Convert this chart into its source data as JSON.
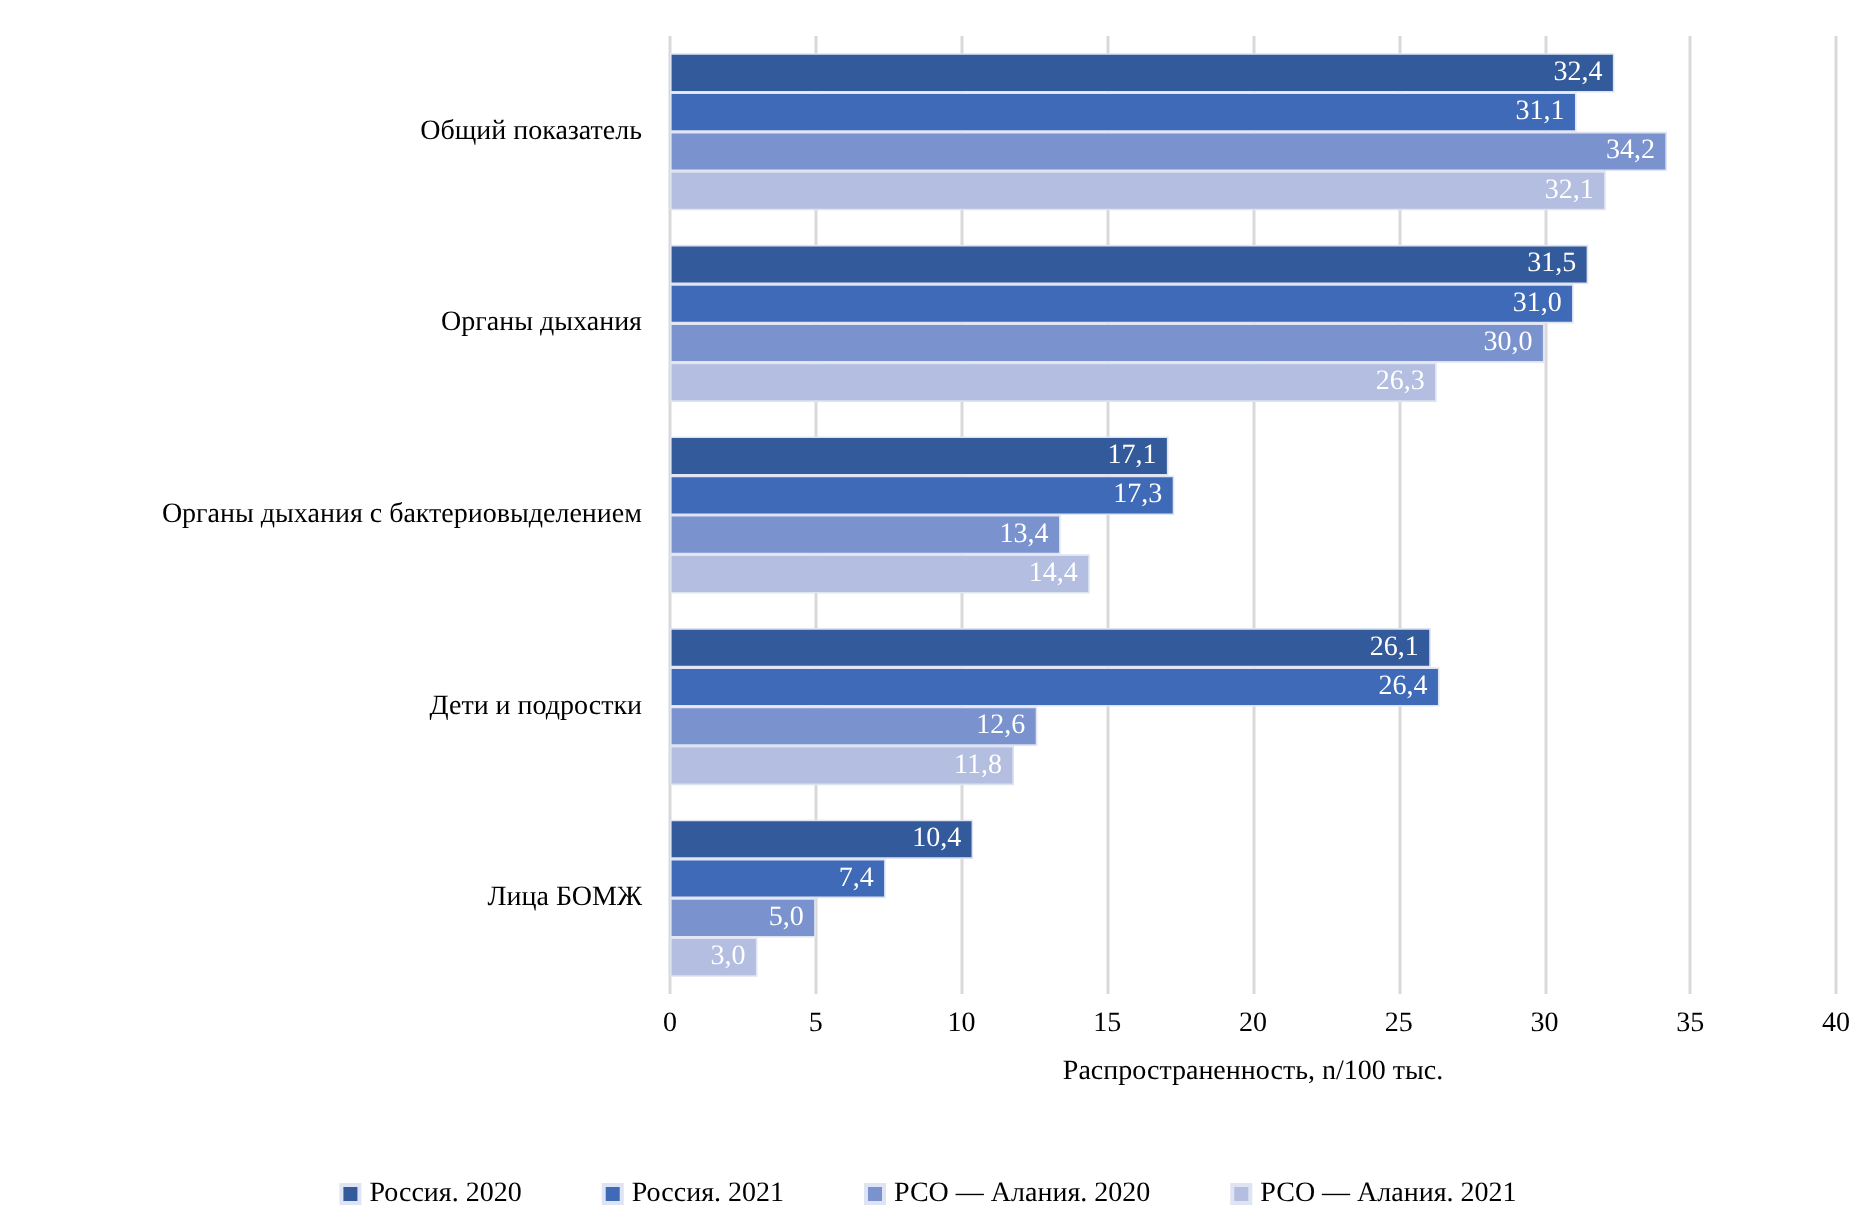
{
  "chart_data": {
    "type": "bar",
    "orientation": "horizontal",
    "xlabel": "Распространенность, n/100 тыс.",
    "categories": [
      "Общий показатель",
      "Органы дыхания",
      "Органы дыхания с бактериовыделением",
      "Дети и подростки",
      "Лица БОМЖ"
    ],
    "series": [
      {
        "name": "Россия. 2020",
        "color": "#335a9a",
        "values": [
          32.4,
          31.5,
          17.1,
          26.1,
          10.4
        ],
        "value_labels": [
          "32,4",
          "31,5",
          "17,1",
          "26,1",
          "10,4"
        ]
      },
      {
        "name": "Россия. 2021",
        "color": "#3f6ab8",
        "values": [
          31.1,
          31.0,
          17.3,
          26.4,
          7.4
        ],
        "value_labels": [
          "31,1",
          "31,0",
          "17,3",
          "26,4",
          "7,4"
        ]
      },
      {
        "name": "РСО — Алания. 2020",
        "color": "#7a93cf",
        "values": [
          34.2,
          30.0,
          13.4,
          12.6,
          5.0
        ],
        "value_labels": [
          "34,2",
          "30,0",
          "13,4",
          "12,6",
          "5,0"
        ]
      },
      {
        "name": "РСО — Алания. 2021",
        "color": "#b3bee0",
        "values": [
          32.1,
          26.3,
          14.4,
          11.8,
          3.0
        ],
        "value_labels": [
          "32,1",
          "26,3",
          "14,4",
          "11,8",
          "3,0"
        ]
      }
    ],
    "xlim": [
      0,
      40
    ],
    "xticks": [
      0,
      5,
      10,
      15,
      20,
      25,
      30,
      35,
      40
    ],
    "grid": "x",
    "legend": "bottom"
  }
}
